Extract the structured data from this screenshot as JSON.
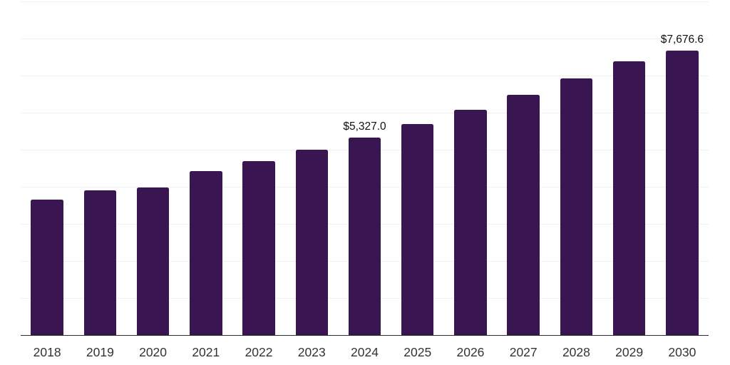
{
  "chart_data": {
    "type": "bar",
    "title": "",
    "xlabel": "",
    "ylabel": "",
    "categories": [
      "2018",
      "2019",
      "2020",
      "2021",
      "2022",
      "2023",
      "2024",
      "2025",
      "2026",
      "2027",
      "2028",
      "2029",
      "2030"
    ],
    "values": [
      3660,
      3900,
      3980,
      4430,
      4700,
      5000,
      5327.0,
      5690,
      6070,
      6490,
      6920,
      7380,
      7676.6
    ],
    "data_labels": [
      null,
      null,
      null,
      null,
      null,
      null,
      "$5,327.0",
      null,
      null,
      null,
      null,
      null,
      "$7,676.6"
    ],
    "value_prefix": "$",
    "ylim": [
      0,
      9000
    ],
    "gridline_step": 1000,
    "grid": "horizontal-only",
    "y_axis_tick_labels": "none",
    "legend": "none"
  },
  "colors": {
    "bar": "#391551",
    "gridline": "#f0f0f0",
    "axis_line": "#2d2d2d",
    "tick_label": "#333333",
    "data_label": "#111111",
    "background": "#ffffff"
  }
}
